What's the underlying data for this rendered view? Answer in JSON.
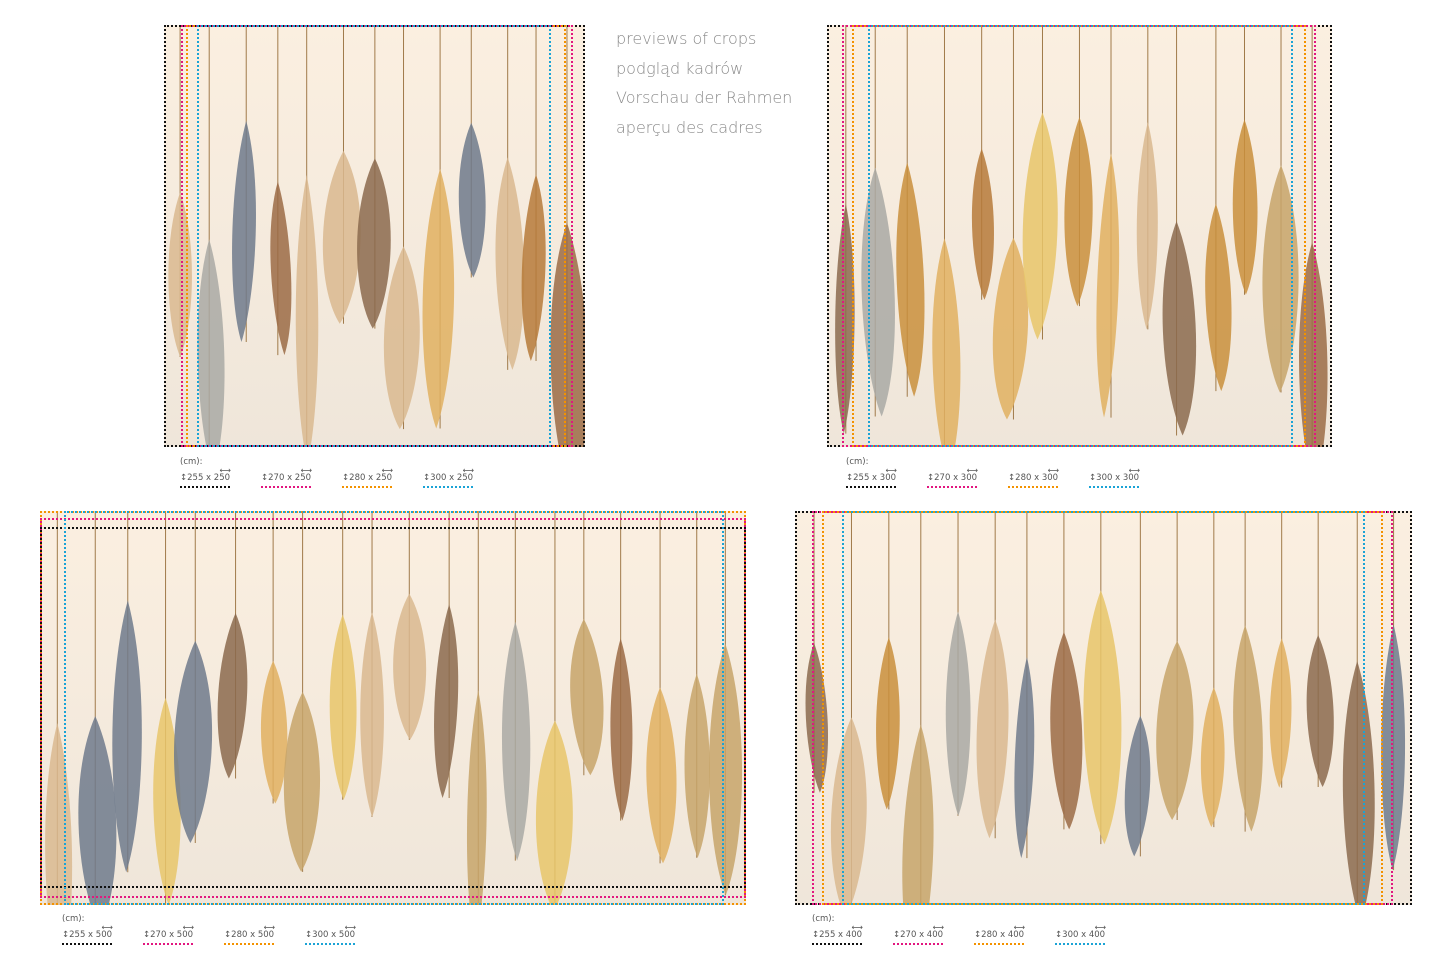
{
  "titles": [
    "previews of crops",
    "podgląd kadrów",
    "Vorschau der Rahmen",
    "aperçu des cadres"
  ],
  "colors": {
    "black": "#111111",
    "magenta": "#e2167f",
    "orange": "#f39200",
    "cyan": "#1aa3d6",
    "background": "#f6ecdf"
  },
  "feather_palette": [
    "#c98f3c",
    "#e0b060",
    "#a9a9a4",
    "#8b6a4e",
    "#d9b98f",
    "#c7a46a",
    "#6f7a8c",
    "#b67a3a",
    "#e8c66a",
    "#9b6b45"
  ],
  "icons": {
    "height": "updown-arrow-icon",
    "width": "leftright-arrow-icon"
  },
  "panels": [
    {
      "unit": "(cm):",
      "sizes": [
        {
          "label": "255 x 250",
          "color": "black"
        },
        {
          "label": "270 x 250",
          "color": "magenta"
        },
        {
          "label": "280 x 250",
          "color": "orange"
        },
        {
          "label": "300 x 250",
          "color": "cyan"
        }
      ]
    },
    {
      "unit": "(cm):",
      "sizes": [
        {
          "label": "255 x 300",
          "color": "black"
        },
        {
          "label": "270 x 300",
          "color": "magenta"
        },
        {
          "label": "280 x 300",
          "color": "orange"
        },
        {
          "label": "300 x 300",
          "color": "cyan"
        }
      ]
    },
    {
      "unit": "(cm):",
      "sizes": [
        {
          "label": "255 x 500",
          "color": "black"
        },
        {
          "label": "270 x 500",
          "color": "magenta"
        },
        {
          "label": "280 x 500",
          "color": "orange"
        },
        {
          "label": "300 x 500",
          "color": "cyan"
        }
      ]
    },
    {
      "unit": "(cm):",
      "sizes": [
        {
          "label": "255 x 400",
          "color": "black"
        },
        {
          "label": "270 x 400",
          "color": "magenta"
        },
        {
          "label": "280 x 400",
          "color": "orange"
        },
        {
          "label": "300 x 400",
          "color": "cyan"
        }
      ]
    }
  ]
}
